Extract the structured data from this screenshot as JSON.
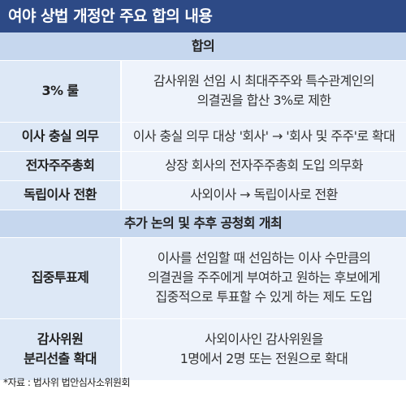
{
  "title": "여야 상법 개정안 주요 합의 내용",
  "sections": [
    {
      "header": "합의",
      "rows": [
        {
          "label": "3% 룰",
          "value_lines": [
            "감사위원 선임 시 최대주주와 특수관계인의",
            "의결권을 합산 3%로 제한"
          ]
        },
        {
          "label": "이사 충실 의무",
          "value_lines": [
            "이사 충실 의무 대상 '회사' → '회사 및 주주'로 확대"
          ]
        },
        {
          "label": "전자주주총회",
          "value_lines": [
            "상장 회사의 전자주주총회 도입 의무화"
          ]
        },
        {
          "label": "독립이사 전환",
          "value_lines": [
            "사외이사 → 독립이사로 전환"
          ]
        }
      ]
    },
    {
      "header": "추가 논의 및 추후 공청회 개최",
      "rows": [
        {
          "label_lines": [
            "집중투표제"
          ],
          "value_lines": [
            "이사를 선임할 때 선임하는 이사 수만큼의",
            "의결권을 주주에게 부여하고 원하는 후보에게",
            "집중적으로 투표할 수 있게 하는 제도 도입"
          ]
        },
        {
          "label_lines": [
            "감사위원",
            "분리선출 확대"
          ],
          "value_lines": [
            "사외이사인 감사위원을",
            "1명에서 2명 또는 전원으로 확대"
          ]
        }
      ]
    }
  ],
  "source": "*자료 : 법사위 법안심사소위원회",
  "colors": {
    "title_bg": "#2d4a86",
    "section_bg": "#c6d7ee",
    "label_bg": "#dde8f6",
    "value_bg": "#eef3fb"
  }
}
